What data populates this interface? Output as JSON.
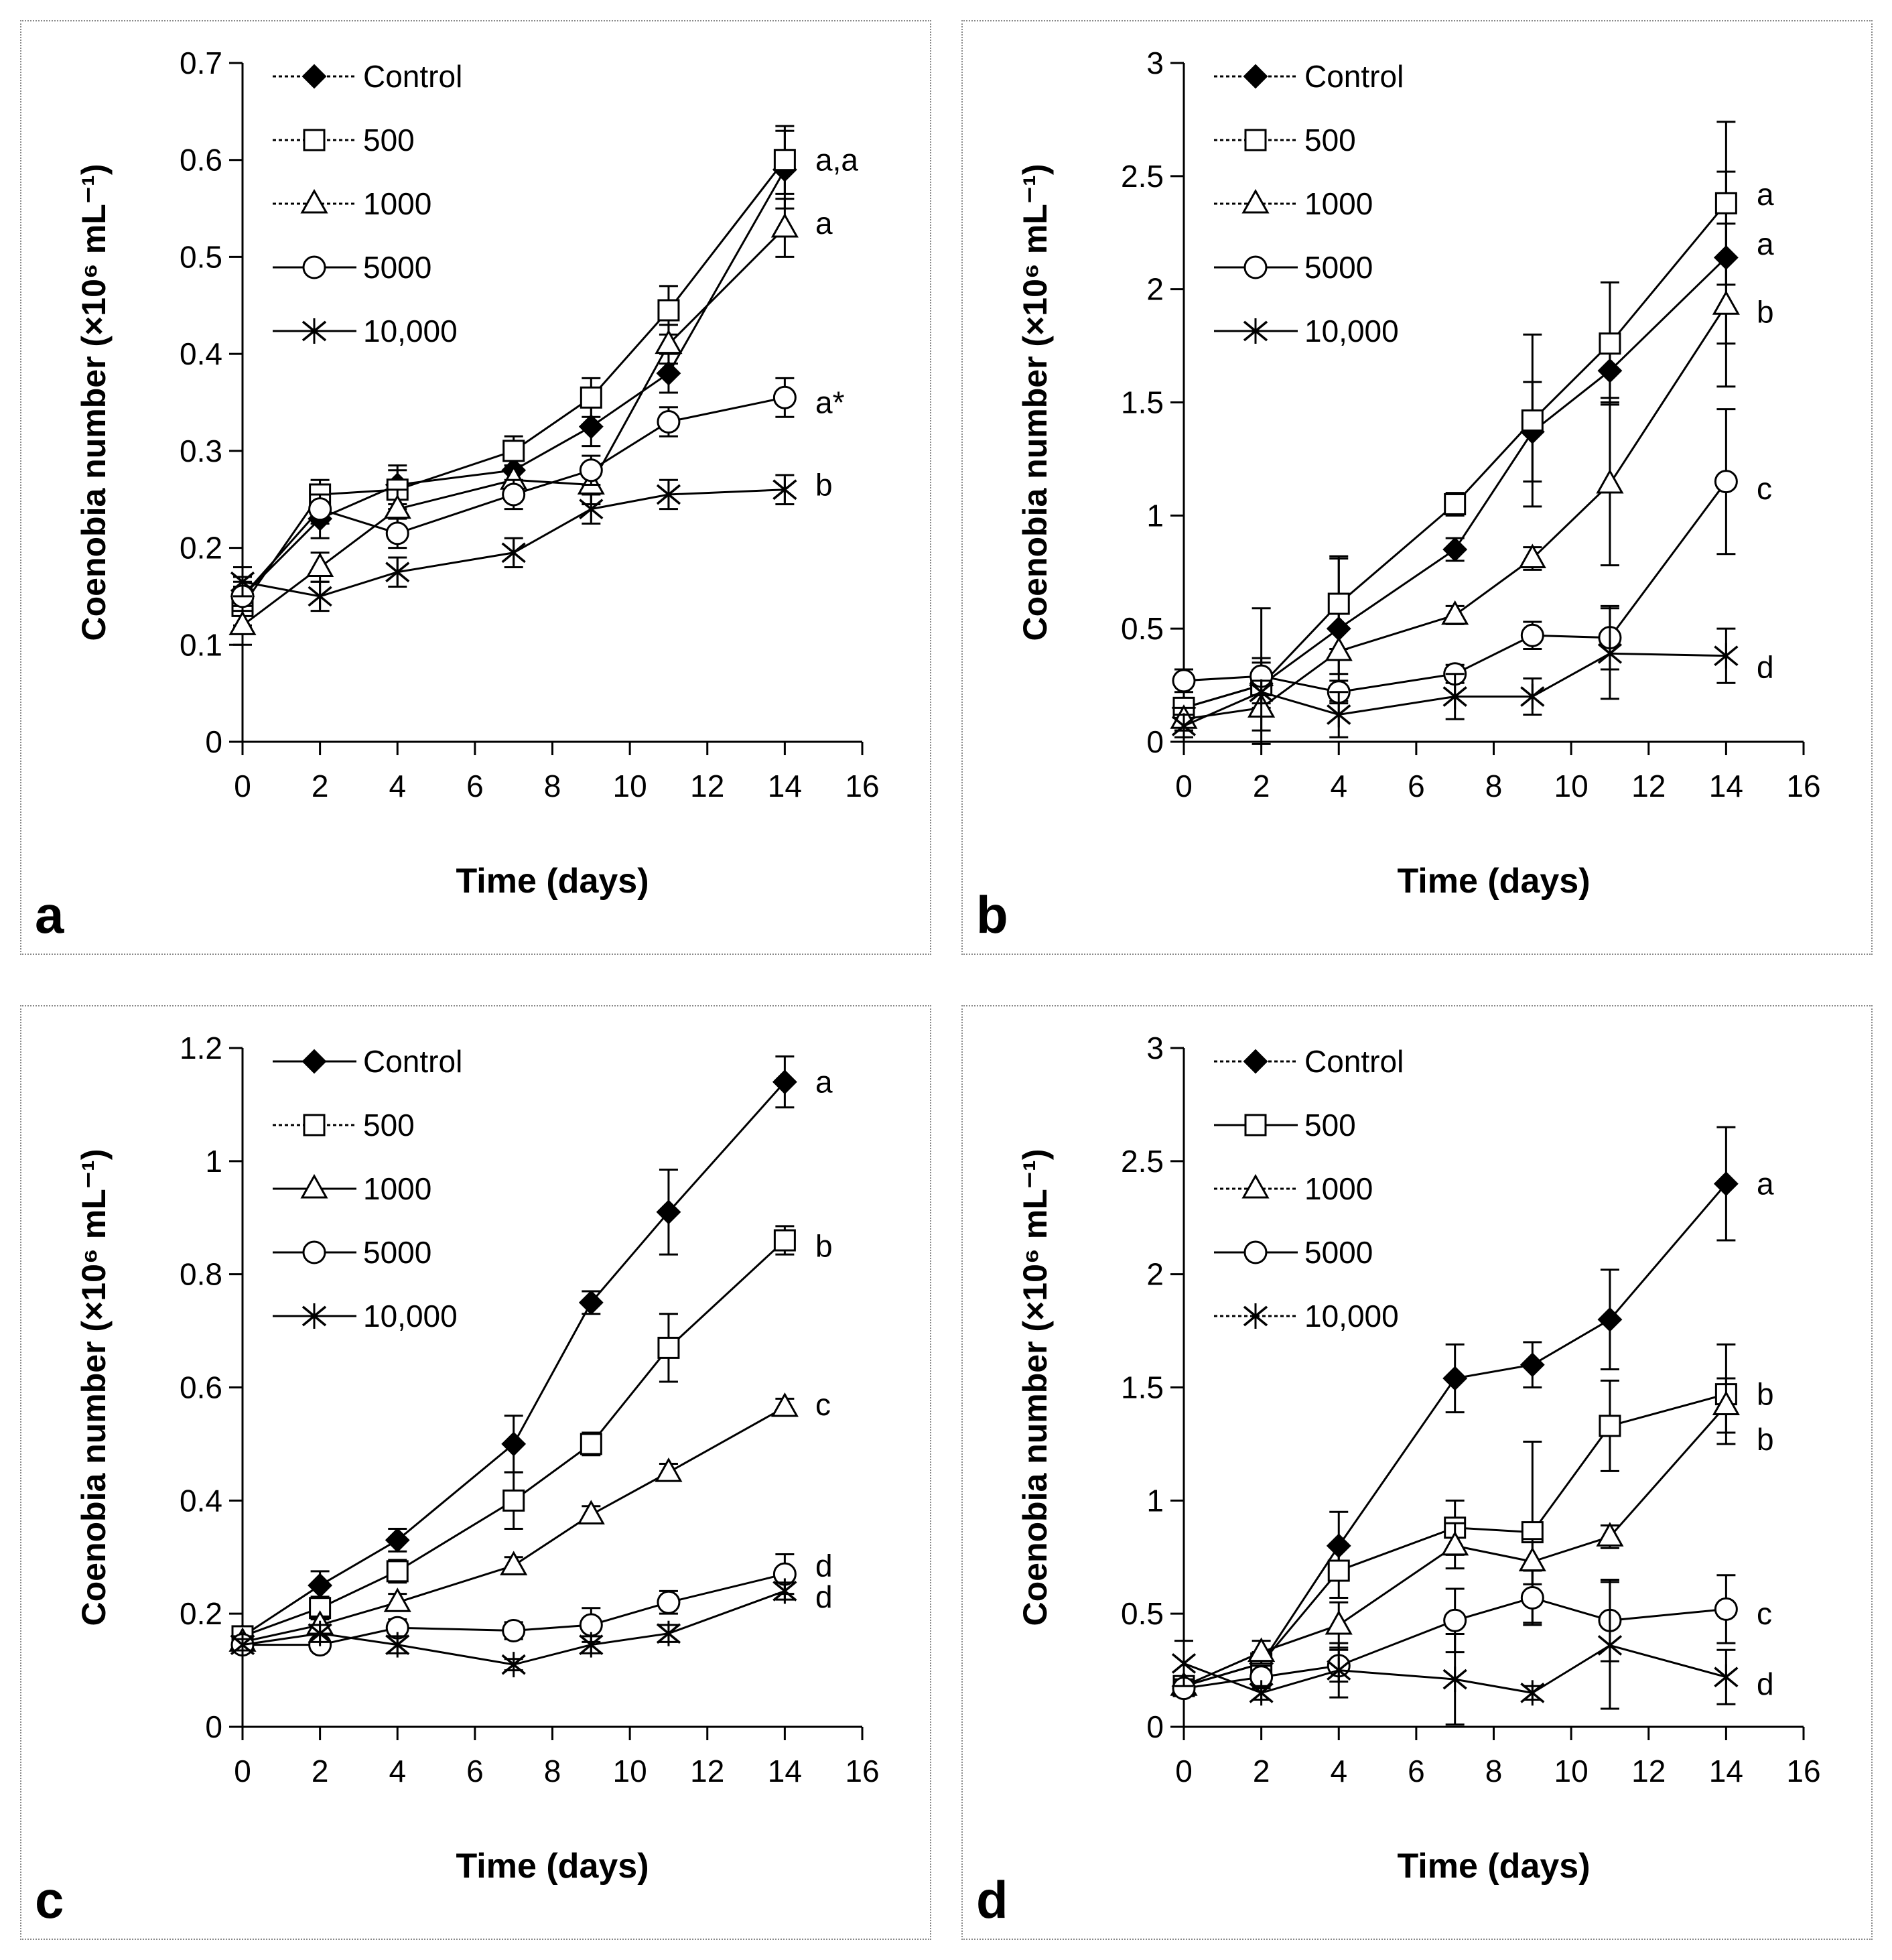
{
  "chart_data": [
    {
      "panel_label": "a",
      "type": "line",
      "xlabel": "Time (days)",
      "ylabel": "Coenobia number (×10⁶ mL⁻¹)",
      "xlim": [
        0,
        16
      ],
      "ylim": [
        0,
        0.7
      ],
      "xticks": [
        0,
        2,
        4,
        6,
        8,
        10,
        12,
        14,
        16
      ],
      "yticks": [
        0,
        0.1,
        0.2,
        0.3,
        0.4,
        0.5,
        0.6,
        0.7
      ],
      "x": [
        0,
        2,
        4,
        7,
        9,
        11,
        14
      ],
      "legend_position": "top-left",
      "series": [
        {
          "name": "Control",
          "marker": "filled-diamond",
          "dotted": true,
          "values": [
            0.15,
            0.23,
            0.265,
            0.28,
            0.325,
            0.38,
            0.59
          ],
          "errors": [
            0.02,
            0.02,
            0.02,
            0.015,
            0.02,
            0.02,
            0.04
          ]
        },
        {
          "name": "500",
          "marker": "open-square",
          "dotted": true,
          "values": [
            0.14,
            0.255,
            0.26,
            0.3,
            0.355,
            0.445,
            0.6
          ],
          "errors": [
            0.02,
            0.015,
            0.02,
            0.015,
            0.02,
            0.025,
            0.035
          ]
        },
        {
          "name": "1000",
          "marker": "open-triangle",
          "dotted": true,
          "values": [
            0.12,
            0.18,
            0.24,
            0.27,
            0.265,
            0.41,
            0.53
          ],
          "errors": [
            0.02,
            0.015,
            0.02,
            0.015,
            0.02,
            0.02,
            0.03
          ]
        },
        {
          "name": "5000",
          "marker": "open-circle",
          "dotted": false,
          "values": [
            0.15,
            0.24,
            0.215,
            0.255,
            0.28,
            0.33,
            0.355
          ],
          "errors": [
            0.015,
            0.015,
            0.015,
            0.015,
            0.015,
            0.015,
            0.02
          ]
        },
        {
          "name": "10,000",
          "marker": "x-star",
          "dotted": false,
          "values": [
            0.165,
            0.15,
            0.175,
            0.195,
            0.24,
            0.255,
            0.26
          ],
          "errors": [
            0.015,
            0.015,
            0.015,
            0.015,
            0.015,
            0.015,
            0.015
          ]
        }
      ],
      "significance": [
        {
          "text": "a,a",
          "value": 0.6
        },
        {
          "text": "a",
          "value": 0.535
        },
        {
          "text": "a*",
          "value": 0.35
        },
        {
          "text": "b",
          "value": 0.265
        }
      ]
    },
    {
      "panel_label": "b",
      "type": "line",
      "xlabel": "Time (days)",
      "ylabel": "Coenobia number (×10⁶ mL⁻¹)",
      "xlim": [
        0,
        16
      ],
      "ylim": [
        0,
        3
      ],
      "xticks": [
        0,
        2,
        4,
        6,
        8,
        10,
        12,
        14,
        16
      ],
      "yticks": [
        0,
        0.5,
        1,
        1.5,
        2,
        2.5,
        3
      ],
      "x": [
        0,
        2,
        4,
        7,
        9,
        11,
        14
      ],
      "legend_position": "top-left",
      "series": [
        {
          "name": "Control",
          "marker": "filled-diamond",
          "dotted": true,
          "values": [
            0.15,
            0.25,
            0.5,
            0.85,
            1.37,
            1.64,
            2.14
          ],
          "errors": [
            0.1,
            0.1,
            0.32,
            0.05,
            0.22,
            0.12,
            0.38
          ]
        },
        {
          "name": "500",
          "marker": "open-square",
          "dotted": true,
          "values": [
            0.15,
            0.25,
            0.61,
            1.05,
            1.42,
            1.76,
            2.38
          ],
          "errors": [
            0.1,
            0.12,
            0.2,
            0.05,
            0.38,
            0.27,
            0.36
          ]
        },
        {
          "name": "1000",
          "marker": "open-triangle",
          "dotted": true,
          "values": [
            0.1,
            0.15,
            0.4,
            0.56,
            0.81,
            1.14,
            1.93
          ],
          "errors": [
            0.05,
            0.1,
            0.1,
            0.04,
            0.05,
            0.36,
            0.36
          ]
        },
        {
          "name": "5000",
          "marker": "open-circle",
          "dotted": false,
          "values": [
            0.27,
            0.29,
            0.22,
            0.3,
            0.47,
            0.46,
            1.15
          ],
          "errors": [
            0.05,
            0.3,
            0.05,
            0.04,
            0.06,
            0.14,
            0.32
          ]
        },
        {
          "name": "10,000",
          "marker": "x-star",
          "dotted": false,
          "values": [
            0.07,
            0.22,
            0.12,
            0.2,
            0.2,
            0.39,
            0.38
          ],
          "errors": [
            0.05,
            0.05,
            0.1,
            0.1,
            0.08,
            0.2,
            0.12
          ]
        }
      ],
      "significance": [
        {
          "text": "a",
          "value": 2.42
        },
        {
          "text": "a",
          "value": 2.2
        },
        {
          "text": "b",
          "value": 1.9
        },
        {
          "text": "c",
          "value": 1.12
        },
        {
          "text": "d",
          "value": 0.33
        }
      ]
    },
    {
      "panel_label": "c",
      "type": "line",
      "xlabel": "Time (days)",
      "ylabel": "Coenobia number (×10⁶ mL⁻¹)",
      "xlim": [
        0,
        16
      ],
      "ylim": [
        0,
        1.2
      ],
      "xticks": [
        0,
        2,
        4,
        6,
        8,
        10,
        12,
        14,
        16
      ],
      "yticks": [
        0,
        0.2,
        0.4,
        0.6,
        0.8,
        1,
        1.2
      ],
      "x": [
        0,
        2,
        4,
        7,
        9,
        11,
        14
      ],
      "legend_position": "top-left",
      "series": [
        {
          "name": "Control",
          "marker": "filled-diamond",
          "dotted": false,
          "values": [
            0.16,
            0.25,
            0.33,
            0.5,
            0.75,
            0.91,
            1.14
          ],
          "errors": [
            0.015,
            0.025,
            0.02,
            0.05,
            0.02,
            0.075,
            0.045
          ]
        },
        {
          "name": "500",
          "marker": "open-square",
          "dotted": true,
          "values": [
            0.16,
            0.21,
            0.275,
            0.4,
            0.5,
            0.67,
            0.86
          ],
          "errors": [
            0.015,
            0.02,
            0.02,
            0.05,
            0.02,
            0.06,
            0.025
          ]
        },
        {
          "name": "1000",
          "marker": "open-triangle",
          "dotted": false,
          "values": [
            0.15,
            0.18,
            0.22,
            0.285,
            0.375,
            0.45,
            0.565
          ],
          "errors": [
            0.01,
            0.015,
            0.015,
            0.015,
            0.015,
            0.015,
            0.015
          ]
        },
        {
          "name": "5000",
          "marker": "open-circle",
          "dotted": false,
          "values": [
            0.145,
            0.145,
            0.175,
            0.17,
            0.18,
            0.22,
            0.27
          ],
          "errors": [
            0.01,
            0.01,
            0.015,
            0.015,
            0.03,
            0.02,
            0.035
          ]
        },
        {
          "name": "10,000",
          "marker": "x-star",
          "dotted": false,
          "values": [
            0.145,
            0.165,
            0.145,
            0.11,
            0.145,
            0.165,
            0.24
          ],
          "errors": [
            0.01,
            0.015,
            0.015,
            0.01,
            0.015,
            0.015,
            0.015
          ]
        }
      ],
      "significance": [
        {
          "text": "a",
          "value": 1.14
        },
        {
          "text": "b",
          "value": 0.85
        },
        {
          "text": "c",
          "value": 0.57
        },
        {
          "text": "d",
          "value": 0.285
        },
        {
          "text": "d",
          "value": 0.23
        }
      ]
    },
    {
      "panel_label": "d",
      "type": "line",
      "xlabel": "Time (days)",
      "ylabel": "Coenobia number (×10⁶ mL⁻¹)",
      "xlim": [
        0,
        16
      ],
      "ylim": [
        0,
        3
      ],
      "xticks": [
        0,
        2,
        4,
        6,
        8,
        10,
        12,
        14,
        16
      ],
      "yticks": [
        0,
        0.5,
        1,
        1.5,
        2,
        2.5,
        3
      ],
      "x": [
        0,
        2,
        4,
        7,
        9,
        11,
        14
      ],
      "legend_position": "top-left",
      "series": [
        {
          "name": "Control",
          "marker": "filled-diamond",
          "dotted": true,
          "values": [
            0.18,
            0.28,
            0.8,
            1.54,
            1.6,
            1.8,
            2.4
          ],
          "errors": [
            0.03,
            0.05,
            0.15,
            0.15,
            0.1,
            0.22,
            0.25
          ]
        },
        {
          "name": "500",
          "marker": "open-square",
          "dotted": false,
          "values": [
            0.18,
            0.28,
            0.69,
            0.88,
            0.86,
            1.33,
            1.47
          ],
          "errors": [
            0.03,
            0.05,
            0.12,
            0.12,
            0.4,
            0.2,
            0.22
          ]
        },
        {
          "name": "1000",
          "marker": "open-triangle",
          "dotted": true,
          "values": [
            0.18,
            0.33,
            0.45,
            0.8,
            0.73,
            0.84,
            1.42
          ],
          "errors": [
            0.03,
            0.05,
            0.1,
            0.1,
            0.1,
            0.05,
            0.12
          ]
        },
        {
          "name": "5000",
          "marker": "open-circle",
          "dotted": false,
          "values": [
            0.17,
            0.22,
            0.27,
            0.47,
            0.57,
            0.47,
            0.52
          ],
          "errors": [
            0.03,
            0.05,
            0.07,
            0.14,
            0.12,
            0.18,
            0.15
          ]
        },
        {
          "name": "10,000",
          "marker": "x-star",
          "dotted": true,
          "values": [
            0.28,
            0.15,
            0.25,
            0.21,
            0.15,
            0.36,
            0.22
          ],
          "errors": [
            0.1,
            0.03,
            0.12,
            0.2,
            0.03,
            0.28,
            0.12
          ]
        }
      ],
      "significance": [
        {
          "text": "a",
          "value": 2.4
        },
        {
          "text": "b",
          "value": 1.47
        },
        {
          "text": "b",
          "value": 1.27
        },
        {
          "text": "c",
          "value": 0.5
        },
        {
          "text": "d",
          "value": 0.19
        }
      ]
    }
  ]
}
